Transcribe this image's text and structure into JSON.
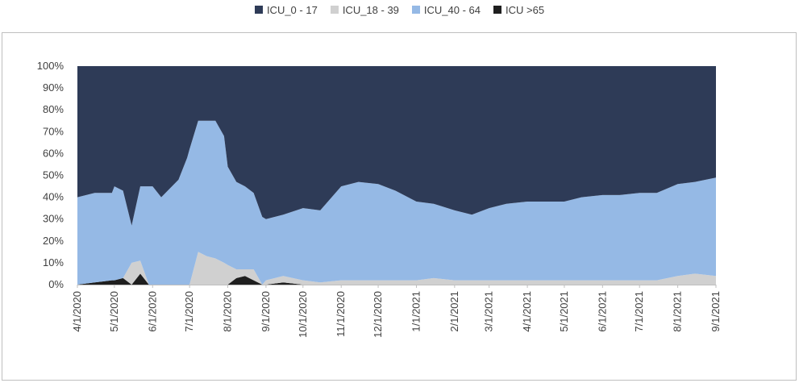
{
  "chart_data": {
    "type": "area",
    "stacked_percent": true,
    "title": "",
    "xlabel": "",
    "ylabel": "",
    "ylim": [
      0,
      100
    ],
    "y_ticks": [
      "0%",
      "10%",
      "20%",
      "30%",
      "40%",
      "50%",
      "60%",
      "70%",
      "80%",
      "90%",
      "100%"
    ],
    "x_ticks": [
      "4/1/2020",
      "5/1/2020",
      "6/1/2020",
      "7/1/2020",
      "8/1/2020",
      "9/1/2020",
      "10/1/2020",
      "11/1/2020",
      "12/1/2020",
      "1/1/2021",
      "2/1/2021",
      "3/1/2021",
      "4/1/2021",
      "5/1/2021",
      "6/1/2021",
      "7/1/2021",
      "8/1/2021",
      "9/1/2021"
    ],
    "x_dates": [
      "2020-04-01",
      "2020-04-15",
      "2020-04-29",
      "2020-05-01",
      "2020-05-08",
      "2020-05-15",
      "2020-05-22",
      "2020-05-29",
      "2020-06-01",
      "2020-06-08",
      "2020-06-15",
      "2020-06-22",
      "2020-06-29",
      "2020-07-01",
      "2020-07-08",
      "2020-07-15",
      "2020-07-22",
      "2020-07-29",
      "2020-08-01",
      "2020-08-08",
      "2020-08-15",
      "2020-08-22",
      "2020-08-29",
      "2020-09-01",
      "2020-09-15",
      "2020-10-01",
      "2020-10-15",
      "2020-11-01",
      "2020-11-15",
      "2020-12-01",
      "2020-12-15",
      "2021-01-01",
      "2021-01-15",
      "2021-02-01",
      "2021-02-15",
      "2021-03-01",
      "2021-03-15",
      "2021-04-01",
      "2021-04-15",
      "2021-05-01",
      "2021-05-15",
      "2021-06-01",
      "2021-06-15",
      "2021-07-01",
      "2021-07-15",
      "2021-08-01",
      "2021-08-15",
      "2021-09-01"
    ],
    "legend_position": "top",
    "grid": false,
    "series": [
      {
        "name": "ICU >65",
        "color": "#1f1f1f",
        "values": [
          0,
          1,
          2,
          2,
          3,
          0,
          5,
          0,
          0,
          0,
          0,
          0,
          0,
          0,
          0,
          0,
          0,
          0,
          0,
          3,
          4,
          2,
          0,
          0,
          1,
          0,
          0,
          0,
          0,
          0,
          0,
          0,
          0,
          0,
          0,
          0,
          0,
          0,
          0,
          0,
          0,
          0,
          0,
          0,
          0,
          0,
          0,
          0
        ]
      },
      {
        "name": "ICU_18 - 39",
        "color": "#d0d0d0",
        "values": [
          0,
          0,
          0,
          0,
          0,
          10,
          6,
          0,
          0,
          0,
          0,
          0,
          0,
          0,
          15,
          13,
          12,
          10,
          9,
          4,
          3,
          5,
          0,
          2,
          3,
          2,
          1,
          2,
          2,
          2,
          2,
          2,
          3,
          2,
          2,
          2,
          2,
          2,
          2,
          2,
          2,
          2,
          2,
          2,
          2,
          4,
          5,
          4
        ]
      },
      {
        "name": "ICU_40 - 64",
        "color": "#95b9e5",
        "values": [
          40,
          41,
          40,
          43,
          40,
          17,
          34,
          45,
          45,
          40,
          44,
          48,
          58,
          62,
          60,
          62,
          63,
          58,
          45,
          40,
          38,
          35,
          31,
          28,
          28,
          33,
          33,
          43,
          45,
          44,
          41,
          36,
          34,
          32,
          30,
          33,
          35,
          36,
          36,
          36,
          38,
          39,
          39,
          40,
          40,
          42,
          42,
          45
        ]
      },
      {
        "name": "ICU_0 - 17",
        "color": "#2e3b57",
        "values": [
          60,
          58,
          58,
          55,
          57,
          73,
          55,
          55,
          55,
          60,
          56,
          52,
          42,
          38,
          25,
          25,
          25,
          32,
          46,
          53,
          55,
          58,
          69,
          70,
          68,
          65,
          66,
          55,
          53,
          54,
          57,
          62,
          63,
          66,
          68,
          65,
          63,
          62,
          62,
          62,
          60,
          59,
          59,
          58,
          58,
          54,
          53,
          51
        ]
      }
    ]
  },
  "legend": {
    "items": [
      {
        "label": "ICU_0 - 17",
        "color": "#2e3b57"
      },
      {
        "label": "ICU_18 - 39",
        "color": "#d0d0d0"
      },
      {
        "label": "ICU_40 - 64",
        "color": "#95b9e5"
      },
      {
        "label": "ICU >65",
        "color": "#1f1f1f"
      }
    ]
  }
}
